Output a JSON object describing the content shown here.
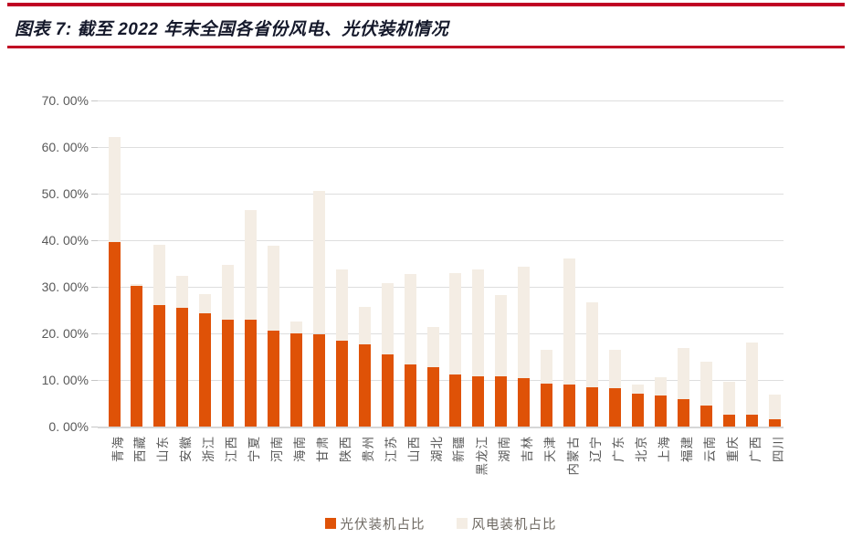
{
  "header": {
    "title": "图表 7: 截至 2022 年末全国各省份风电、光伏装机情况"
  },
  "chart_data": {
    "type": "bar",
    "stacked": true,
    "title": "截至 2022 年末全国各省份风电、光伏装机情况",
    "xlabel": "",
    "ylabel": "",
    "ylim": [
      0,
      70
    ],
    "grid": true,
    "legend_position": "bottom",
    "y_ticks_top_down": [
      "70. 00%",
      "60. 00%",
      "50. 00%",
      "40. 00%",
      "30. 00%",
      "20. 00%",
      "10. 00%",
      "0. 00%"
    ],
    "categories": [
      "青海",
      "西藏",
      "山东",
      "安徽",
      "浙江",
      "江西",
      "宁夏",
      "河南",
      "海南",
      "甘肃",
      "陕西",
      "贵州",
      "江苏",
      "山西",
      "湖北",
      "新疆",
      "黑龙江",
      "湖南",
      "吉林",
      "天津",
      "内蒙古",
      "辽宁",
      "广东",
      "北京",
      "上海",
      "福建",
      "云南",
      "重庆",
      "广西",
      "四川"
    ],
    "series": [
      {
        "name": "光伏装机占比",
        "color": "#DF5207",
        "values": [
          39.6,
          30.1,
          26.0,
          25.4,
          24.3,
          23.0,
          22.9,
          20.5,
          20.0,
          19.9,
          18.5,
          17.7,
          15.4,
          13.4,
          12.7,
          11.2,
          10.8,
          10.8,
          10.4,
          9.2,
          9.0,
          8.5,
          8.3,
          7.1,
          6.6,
          5.8,
          4.5,
          2.6,
          2.5,
          1.6
        ]
      },
      {
        "name": "风电装机占比",
        "color": "#F4EDE4",
        "values": [
          22.5,
          0.5,
          13.1,
          6.9,
          4.2,
          11.8,
          23.5,
          18.4,
          2.5,
          30.6,
          15.3,
          7.9,
          15.4,
          19.3,
          8.7,
          21.7,
          23.0,
          17.4,
          24.0,
          7.2,
          27.0,
          18.2,
          8.1,
          1.9,
          4.0,
          11.0,
          9.4,
          7.0,
          15.5,
          5.2
        ]
      }
    ]
  },
  "colors": {
    "rule": "#C00023",
    "title_text": "#15192B",
    "grid": "#DEDEDE",
    "axis_text": "#595959",
    "legend_text": "#6F6A63"
  }
}
